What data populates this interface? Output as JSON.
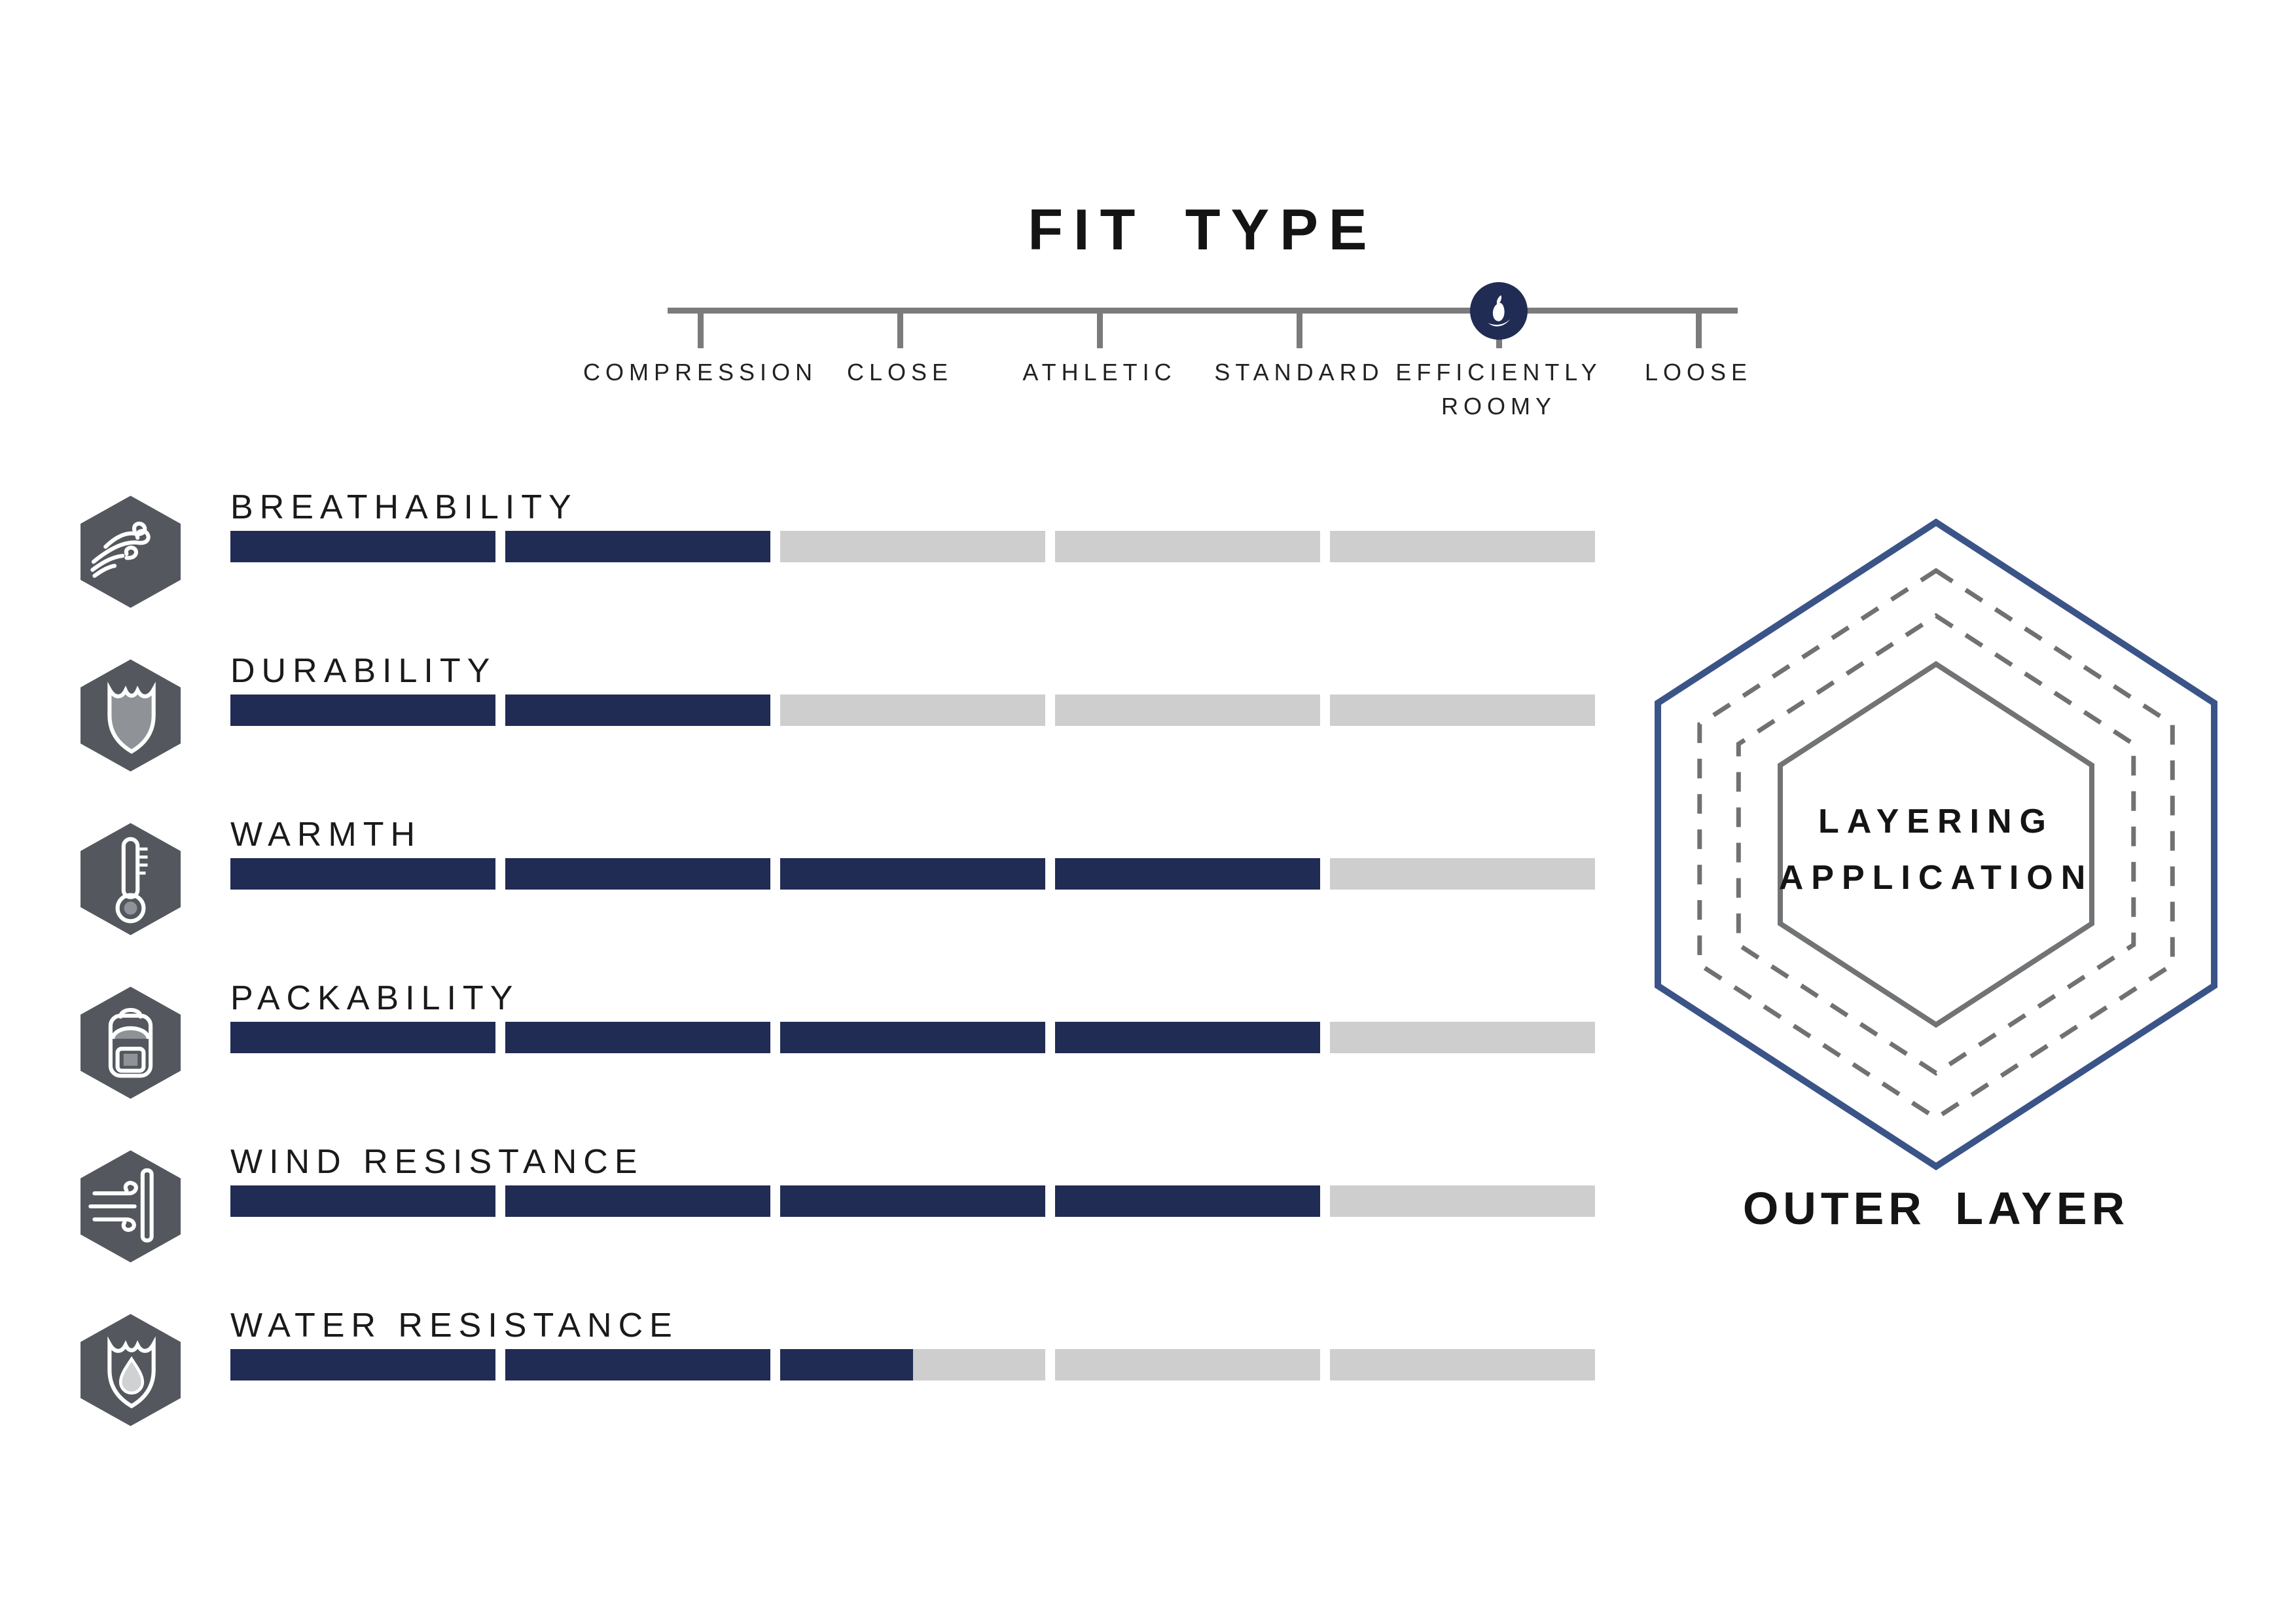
{
  "fit_scale": {
    "title": "FIT TYPE",
    "options": [
      "COMPRESSION",
      "CLOSE",
      "ATHLETIC",
      "STANDARD",
      "EFFICIENTLY ROOMY",
      "LOOSE"
    ],
    "selected": "EFFICIENTLY ROOMY",
    "selected_index": 4,
    "marker_icon": "bird-logo-icon"
  },
  "attributes": [
    {
      "label": "BREATHABILITY",
      "icon": "wind-breath-icon",
      "rating": 2,
      "max": 5
    },
    {
      "label": "DURABILITY",
      "icon": "shield-icon",
      "rating": 2,
      "max": 5
    },
    {
      "label": "WARMTH",
      "icon": "thermometer-icon",
      "rating": 4,
      "max": 5
    },
    {
      "label": "PACKABILITY",
      "icon": "backpack-icon",
      "rating": 4,
      "max": 5
    },
    {
      "label": "WIND RESISTANCE",
      "icon": "wind-wall-icon",
      "rating": 4,
      "max": 5
    },
    {
      "label": "WATER RESISTANCE",
      "icon": "water-shield-icon",
      "rating": 2.5,
      "max": 5
    }
  ],
  "layering": {
    "center_label_line1": "LAYERING",
    "center_label_line2": "APPLICATION",
    "caption": "OUTER LAYER"
  },
  "colors": {
    "bar_filled": "#212c54",
    "bar_empty": "#cecece",
    "icon_hex": "#54585e",
    "icon_inner_gray": "#8f9296",
    "icon_light_gray": "#cfd1d3",
    "scale_line": "#7b7b7b",
    "marker_circle": "#212c54",
    "hex_outer_stroke": "#3b5488",
    "hex_dashed_stroke": "#6f7173",
    "hex_inner_stroke": "#717375",
    "text": "#161616"
  },
  "chart_data": {
    "type": "bar",
    "orientation": "horizontal",
    "title": "FIT TYPE",
    "categories": [
      "BREATHABILITY",
      "DURABILITY",
      "WARMTH",
      "PACKABILITY",
      "WIND RESISTANCE",
      "WATER RESISTANCE"
    ],
    "values": [
      2,
      2,
      4,
      4,
      4,
      2.5
    ],
    "ylim": [
      0,
      5
    ],
    "segments_per_bar": 5,
    "legend_position": "none",
    "grid": false,
    "fit_type_scale": {
      "options": [
        "COMPRESSION",
        "CLOSE",
        "ATHLETIC",
        "STANDARD",
        "EFFICIENTLY ROOMY",
        "LOOSE"
      ],
      "selected": "EFFICIENTLY ROOMY"
    },
    "layering_application": "OUTER LAYER"
  }
}
